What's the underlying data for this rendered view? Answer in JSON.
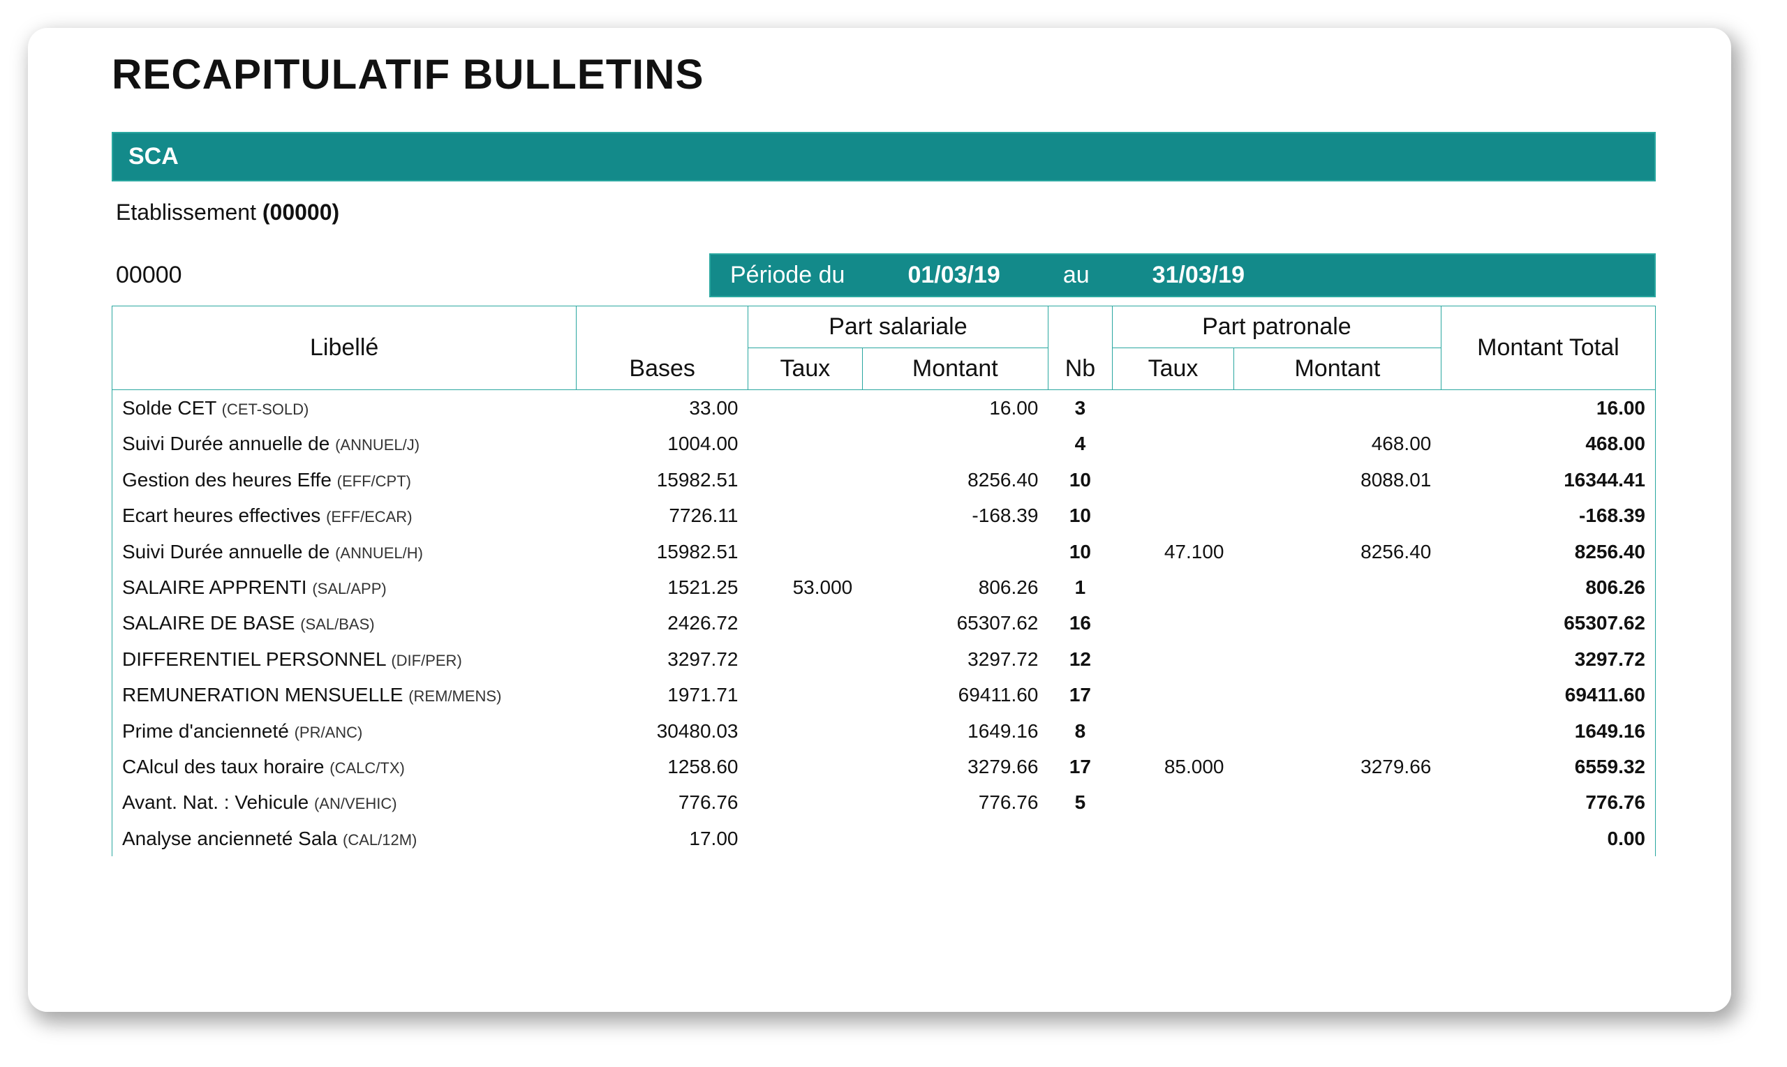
{
  "colors": {
    "teal": "#138a8a",
    "teal_border": "#2aa7a0",
    "text": "#111111",
    "white": "#ffffff"
  },
  "header": {
    "title": "RECAPITULATIF BULLETINS"
  },
  "band": {
    "text": "SCA"
  },
  "etablissement": {
    "label": "Etablissement",
    "code": "(00000)"
  },
  "period": {
    "left_code": "00000",
    "label": "Période du",
    "start": "01/03/19",
    "conj": "au",
    "end": "31/03/19"
  },
  "table": {
    "headers": {
      "libelle": "Libellé",
      "bases": "Bases",
      "part_salariale": "Part salariale",
      "taux": "Taux",
      "montant": "Montant",
      "nb": "Nb",
      "part_patronale": "Part patronale",
      "montant_total": "Montant Total"
    },
    "rows": [
      {
        "label": "Solde CET",
        "code": "(CET-SOLD)",
        "bases": "33.00",
        "taux_s": "",
        "mont_s": "16.00",
        "nb": "3",
        "taux_p": "",
        "mont_p": "",
        "total": "16.00"
      },
      {
        "label": "Suivi Durée annuelle de",
        "code": "(ANNUEL/J)",
        "bases": "1004.00",
        "taux_s": "",
        "mont_s": "",
        "nb": "4",
        "taux_p": "",
        "mont_p": "468.00",
        "total": "468.00"
      },
      {
        "label": "Gestion des heures Effe",
        "code": "(EFF/CPT)",
        "bases": "15982.51",
        "taux_s": "",
        "mont_s": "8256.40",
        "nb": "10",
        "taux_p": "",
        "mont_p": "8088.01",
        "total": "16344.41"
      },
      {
        "label": "Ecart heures effectives",
        "code": "(EFF/ECAR)",
        "bases": "7726.11",
        "taux_s": "",
        "mont_s": "-168.39",
        "nb": "10",
        "taux_p": "",
        "mont_p": "",
        "total": "-168.39"
      },
      {
        "label": "Suivi Durée annuelle de",
        "code": "(ANNUEL/H)",
        "bases": "15982.51",
        "taux_s": "",
        "mont_s": "",
        "nb": "10",
        "taux_p": "47.100",
        "mont_p": "8256.40",
        "total": "8256.40"
      },
      {
        "label": "SALAIRE APPRENTI",
        "code": "(SAL/APP)",
        "bases": "1521.25",
        "taux_s": "53.000",
        "mont_s": "806.26",
        "nb": "1",
        "taux_p": "",
        "mont_p": "",
        "total": "806.26"
      },
      {
        "label": "SALAIRE DE BASE",
        "code": "(SAL/BAS)",
        "bases": "2426.72",
        "taux_s": "",
        "mont_s": "65307.62",
        "nb": "16",
        "taux_p": "",
        "mont_p": "",
        "total": "65307.62"
      },
      {
        "label": "DIFFERENTIEL PERSONNEL",
        "code": "(DIF/PER)",
        "bases": "3297.72",
        "taux_s": "",
        "mont_s": "3297.72",
        "nb": "12",
        "taux_p": "",
        "mont_p": "",
        "total": "3297.72"
      },
      {
        "label": "REMUNERATION MENSUELLE",
        "code": "(REM/MENS)",
        "bases": "1971.71",
        "taux_s": "",
        "mont_s": "69411.60",
        "nb": "17",
        "taux_p": "",
        "mont_p": "",
        "total": "69411.60"
      },
      {
        "label": "Prime d'ancienneté",
        "code": "(PR/ANC)",
        "bases": "30480.03",
        "taux_s": "",
        "mont_s": "1649.16",
        "nb": "8",
        "taux_p": "",
        "mont_p": "",
        "total": "1649.16"
      },
      {
        "label": "CAlcul des taux horaire",
        "code": "(CALC/TX)",
        "bases": "1258.60",
        "taux_s": "",
        "mont_s": "3279.66",
        "nb": "17",
        "taux_p": "85.000",
        "mont_p": "3279.66",
        "total": "6559.32"
      },
      {
        "label": "Avant. Nat. : Vehicule",
        "code": "(AN/VEHIC)",
        "bases": "776.76",
        "taux_s": "",
        "mont_s": "776.76",
        "nb": "5",
        "taux_p": "",
        "mont_p": "",
        "total": "776.76"
      },
      {
        "label": "Analyse ancienneté Sala",
        "code": "(CAL/12M)",
        "bases": "17.00",
        "taux_s": "",
        "mont_s": "",
        "nb": "",
        "taux_p": "",
        "mont_p": "",
        "total": "0.00"
      }
    ]
  }
}
